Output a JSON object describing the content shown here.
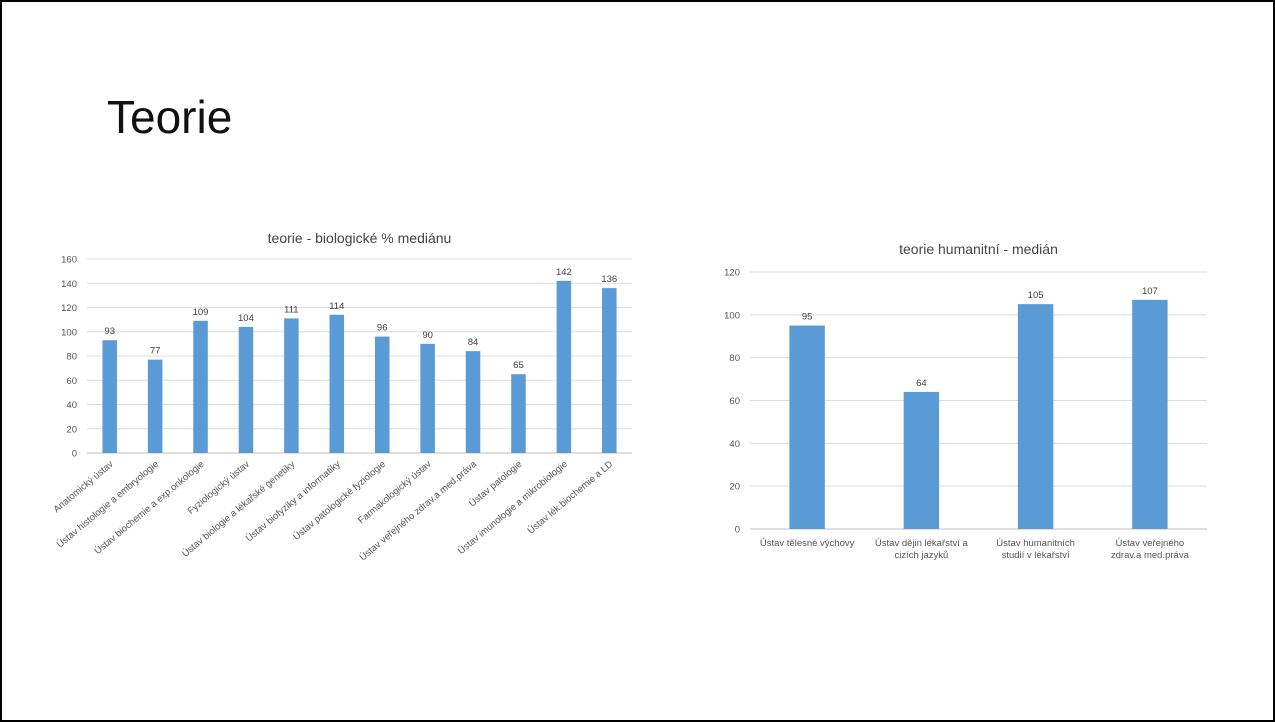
{
  "slide": {
    "title": "Teorie"
  },
  "colors": {
    "bar": "#5b9bd5",
    "grid": "#dcdcdc",
    "text": "#555555"
  },
  "chart_data": [
    {
      "type": "bar",
      "title": "teorie - biologické % mediánu",
      "xlabel": "",
      "ylabel": "",
      "ylim": [
        0,
        160
      ],
      "yticks": [
        0,
        20,
        40,
        60,
        80,
        100,
        120,
        140,
        160
      ],
      "grid": true,
      "legend": "none",
      "categories": [
        "Anatomický ústav",
        "Ústav  histologie a embryologie",
        "Ústav biochemie a exp.onkologie",
        "Fyziologický ústav",
        "Ústav biologie a lékařské genetiky",
        "Ústav biofyziky a informatiky",
        "Ústav patologické fyziologie",
        "Farmakologický ústav",
        "Ústav veřejného zdrav.a med.práva",
        "Ústav patologie",
        "Ústav imunologie a mikrobiologie",
        "Ústav lék.biochemie a LD"
      ],
      "values": [
        93,
        77,
        109,
        104,
        111,
        114,
        96,
        90,
        84,
        65,
        142,
        136
      ]
    },
    {
      "type": "bar",
      "title": "teorie humanitní - medián",
      "xlabel": "",
      "ylabel": "",
      "ylim": [
        0,
        120
      ],
      "yticks": [
        0,
        20,
        40,
        60,
        80,
        100,
        120
      ],
      "grid": true,
      "legend": "none",
      "categories": [
        [
          "Ústav tělesné výchovy"
        ],
        [
          "Ústav dějin lékařství a",
          "cizích jazyků"
        ],
        [
          "Ústav  humanitních",
          "studií v lékařství"
        ],
        [
          "Ústav veřejného",
          "zdrav.a med.práva"
        ]
      ],
      "values": [
        95,
        64,
        105,
        107
      ]
    }
  ]
}
